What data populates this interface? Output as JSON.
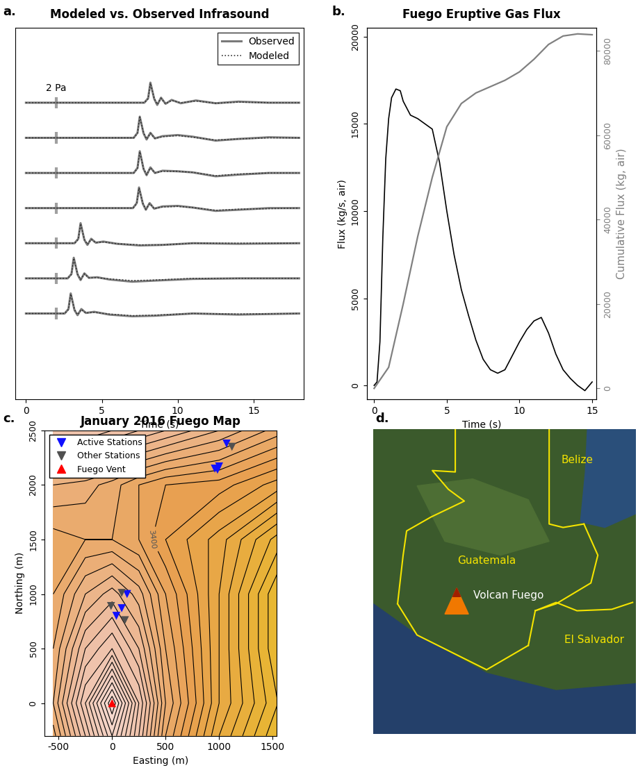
{
  "chart_data": [
    {
      "panel_label": "a.",
      "type": "line",
      "title": "Modeled vs. Observed Infrasound",
      "x_label": "Time (s)",
      "xlim": [
        -0.7,
        18.3
      ],
      "xticks": [
        0,
        5,
        10,
        15
      ],
      "ylim": [
        -15.4,
        51.2
      ],
      "tick_labels": "x",
      "legend": "upper right",
      "offsets": [
        37.8,
        31.5,
        25.2,
        18.9,
        12.6,
        6.3,
        0
      ],
      "x": [
        [
          0,
          7.8,
          8.05,
          8.2,
          8.45,
          8.65,
          8.9,
          9.2,
          9.6,
          10.2,
          11.2,
          12.5,
          14,
          16,
          18
        ],
        [
          0,
          7.1,
          7.35,
          7.5,
          7.75,
          7.95,
          8.2,
          8.5,
          9,
          10,
          11,
          12.5,
          14,
          16,
          18
        ],
        [
          0,
          7.1,
          7.35,
          7.5,
          7.75,
          7.95,
          8.2,
          8.5,
          9,
          10,
          11,
          12.5,
          14,
          16,
          18
        ],
        [
          0,
          7.05,
          7.3,
          7.45,
          7.7,
          7.9,
          8.15,
          8.45,
          9,
          10,
          11,
          12.5,
          14,
          16,
          18
        ],
        [
          0,
          3.2,
          3.45,
          3.6,
          3.85,
          4.05,
          4.3,
          4.6,
          5.1,
          6,
          7.5,
          9,
          11,
          14,
          18
        ],
        [
          0,
          2.75,
          3.0,
          3.15,
          3.4,
          3.6,
          3.85,
          4.15,
          4.7,
          5.5,
          7,
          8.5,
          11,
          14,
          18
        ],
        [
          0,
          2.55,
          2.8,
          2.95,
          3.2,
          3.4,
          3.65,
          3.95,
          4.5,
          5.5,
          7,
          8.5,
          11,
          14,
          18
        ]
      ],
      "series": [
        {
          "name": "Observed",
          "color": "#7a7a7a",
          "line_style": "solid",
          "values": [
            [
              0,
              0,
              0.8,
              3.6,
              0.7,
              -0.4,
              0.9,
              -0.2,
              0.5,
              -0.1,
              0.4,
              -0.1,
              0.2,
              0,
              0
            ],
            [
              0,
              0,
              0.9,
              3.8,
              0.8,
              -0.3,
              0.9,
              -0.1,
              0.3,
              0.5,
              0.2,
              -0.5,
              -0.2,
              0.1,
              0
            ],
            [
              0,
              0,
              0.9,
              3.9,
              0.7,
              -0.4,
              1.0,
              0,
              0.4,
              0.3,
              0.1,
              -0.6,
              -0.3,
              0,
              0
            ],
            [
              0,
              0,
              0.9,
              3.7,
              0.8,
              -0.3,
              0.9,
              -0.1,
              0.3,
              0.4,
              0.1,
              -0.5,
              -0.3,
              0,
              0
            ],
            [
              0,
              0,
              0.8,
              3.6,
              0.6,
              -0.3,
              0.8,
              0.1,
              0.3,
              -0.1,
              -0.4,
              -0.3,
              0,
              -0.1,
              0
            ],
            [
              0,
              0,
              0.8,
              3.7,
              0.7,
              -0.3,
              0.9,
              0.1,
              0.2,
              -0.2,
              -0.6,
              -0.4,
              -0.1,
              0,
              0
            ],
            [
              0,
              0,
              0.8,
              3.6,
              0.6,
              -0.3,
              0.8,
              0.1,
              0.3,
              -0.2,
              -0.5,
              -0.4,
              0,
              -0.2,
              0
            ]
          ]
        },
        {
          "name": "Modeled",
          "color": "#303030",
          "line_style": "dotted",
          "values": [
            [
              0,
              0,
              0.7,
              3.5,
              0.8,
              -0.3,
              0.8,
              -0.2,
              0.4,
              0,
              0.3,
              -0.1,
              0.1,
              0,
              0
            ],
            [
              0,
              0,
              0.8,
              3.7,
              0.9,
              -0.2,
              0.8,
              -0.1,
              0.2,
              0.4,
              0.1,
              -0.4,
              -0.2,
              0,
              0
            ],
            [
              0,
              0,
              0.8,
              3.8,
              0.8,
              -0.3,
              0.9,
              0,
              0.3,
              0.3,
              0.1,
              -0.5,
              -0.2,
              0,
              0
            ],
            [
              0,
              0,
              0.8,
              3.6,
              0.9,
              -0.2,
              0.8,
              -0.1,
              0.2,
              0.3,
              0.1,
              -0.4,
              -0.2,
              -0.1,
              0
            ],
            [
              0,
              0,
              0.7,
              3.5,
              0.7,
              -0.2,
              0.7,
              0.1,
              0.2,
              -0.1,
              -0.3,
              -0.3,
              0,
              0,
              0
            ],
            [
              0,
              0,
              0.7,
              3.6,
              0.8,
              -0.2,
              0.8,
              0.1,
              0.1,
              -0.1,
              -0.4,
              -0.3,
              0,
              0,
              0
            ],
            [
              0,
              0,
              0.7,
              3.5,
              0.7,
              -0.2,
              0.7,
              0.1,
              0.2,
              -0.1,
              -0.4,
              -0.3,
              0,
              -0.1,
              0
            ]
          ]
        }
      ],
      "scale_bar": {
        "x": 2,
        "height": 2,
        "label": "2 Pa",
        "color": "#a0a0a0"
      }
    },
    {
      "panel_label": "b.",
      "type": "line",
      "title": "Fuego Eruptive Gas Flux",
      "x_label": "Time (s)",
      "y_label": "Flux (kg/s, air)",
      "y2_label": "Cumulative Flux (kg, air)",
      "xlim": [
        -0.5,
        15.3
      ],
      "xticks": [
        0,
        5,
        10,
        15
      ],
      "ylim": [
        -800,
        20500
      ],
      "yticks": [
        0,
        5000,
        10000,
        15000,
        20000
      ],
      "y2lim": [
        -2600,
        85400
      ],
      "y2ticks": [
        0,
        20000,
        40000,
        60000,
        80000
      ],
      "series": [
        {
          "color": "#000000",
          "x": [
            0,
            0.2,
            0.4,
            0.6,
            0.8,
            1.0,
            1.2,
            1.5,
            1.8,
            2.0,
            2.5,
            3.0,
            3.5,
            4.0,
            4.5,
            5.0,
            5.5,
            6.0,
            6.5,
            7.0,
            7.5,
            8.0,
            8.5,
            9.0,
            9.5,
            10.0,
            10.5,
            11.0,
            11.5,
            12.0,
            12.5,
            13.0,
            13.5,
            14.0,
            14.5,
            15.0
          ],
          "values": [
            0,
            200,
            2500,
            8500,
            13000,
            15300,
            16500,
            17000,
            16900,
            16300,
            15500,
            15300,
            15000,
            14700,
            12800,
            10000,
            7500,
            5500,
            4000,
            2600,
            1500,
            900,
            700,
            900,
            1700,
            2500,
            3200,
            3700,
            3900,
            3000,
            1800,
            900,
            400,
            0,
            -300,
            200
          ]
        },
        {
          "color": "#808080",
          "axis": "y2",
          "x": [
            0,
            1,
            2,
            3,
            4,
            5,
            6,
            7,
            8,
            9,
            10,
            11,
            12,
            13,
            14,
            15
          ],
          "values": [
            0,
            5000,
            20000,
            36000,
            50000,
            62000,
            67500,
            70000,
            71500,
            73000,
            75000,
            78000,
            81500,
            83500,
            84000,
            83800
          ]
        }
      ]
    },
    {
      "panel_label": "c.",
      "type": "contour",
      "title": "January 2016 Fuego Map",
      "x_label": "Easting (m)",
      "y_label": "Northing (m)",
      "xlim": [
        -630,
        1540
      ],
      "xticks": [
        -500,
        0,
        500,
        1000,
        1500
      ],
      "ylim": [
        -300,
        2500
      ],
      "yticks": [
        0,
        500,
        1000,
        1500,
        2000,
        2500
      ],
      "legend": "upper left",
      "grid_x": [
        -550,
        -250,
        0,
        250,
        500,
        1000,
        1550
      ],
      "grid_y": [
        -300,
        0,
        500,
        1000,
        1500,
        2000,
        2500
      ],
      "elevation": [
        [
          3450,
          3580,
          3700,
          3580,
          3440,
          3300,
          3200
        ],
        [
          3480,
          3620,
          3760,
          3600,
          3460,
          3320,
          3220
        ],
        [
          3460,
          3560,
          3600,
          3540,
          3440,
          3320,
          3200
        ],
        [
          3440,
          3500,
          3530,
          3490,
          3420,
          3320,
          3200
        ],
        [
          3430,
          3440,
          3440,
          3420,
          3380,
          3330,
          3250
        ],
        [
          3480,
          3470,
          3450,
          3420,
          3400,
          3390,
          3350
        ],
        [
          3600,
          3600,
          3580,
          3560,
          3540,
          3500,
          3450
        ]
      ],
      "contour_levels": [
        3200,
        3220,
        3240,
        3260,
        3280,
        3300,
        3320,
        3340,
        3360,
        3380,
        3400,
        3420,
        3440,
        3460,
        3480,
        3500,
        3520,
        3540,
        3560,
        3580,
        3600,
        3620,
        3640,
        3660,
        3680,
        3700,
        3720,
        3740,
        3760
      ],
      "contour_labels": [
        {
          "value": 3400,
          "label": "3400"
        }
      ],
      "series": [
        {
          "name": "Active Stations",
          "color": "#1010ff",
          "marker": "v",
          "x": [
            140,
            90,
            40,
            1070,
            960,
            1000,
            985
          ],
          "y": [
            1000,
            870,
            800,
            2380,
            2150,
            2170,
            2140
          ]
        },
        {
          "name": "Other Stations",
          "color": "#505050",
          "marker": "v",
          "x": [
            90,
            -10,
            120,
            1120
          ],
          "y": [
            1010,
            890,
            760,
            2350
          ]
        },
        {
          "name": "Fuego Vent",
          "color": "#ff0000",
          "marker": "^",
          "x": [
            0
          ],
          "y": [
            0
          ]
        }
      ]
    }
  ],
  "map": {
    "panel_label": "d.",
    "labels": [
      {
        "text": "Belize",
        "color": "#f5e400"
      },
      {
        "text": "Guatemala",
        "color": "#f5e400"
      },
      {
        "text": "Volcan Fuego",
        "color": "#ffffff"
      },
      {
        "text": "El Salvador",
        "color": "#f5e400"
      }
    ]
  }
}
